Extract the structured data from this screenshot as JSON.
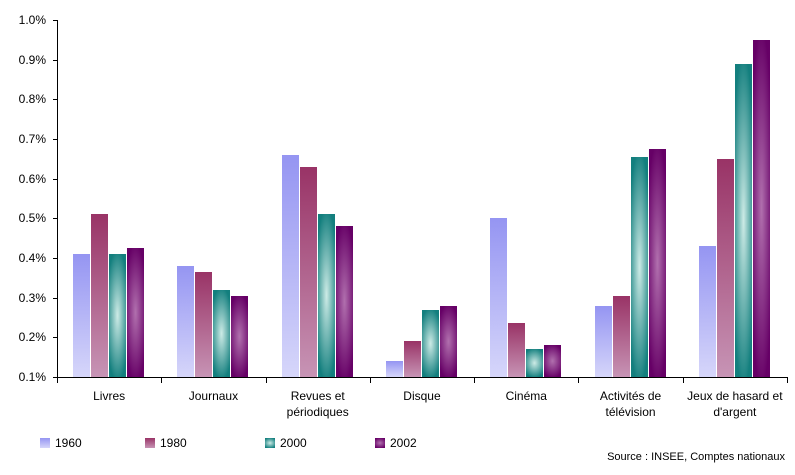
{
  "chart_data": {
    "type": "bar",
    "title": "",
    "xlabel": "",
    "ylabel": "",
    "units": "%",
    "ylim": [
      0.1,
      1.0
    ],
    "ytick_step": 0.1,
    "ytick_labels_top_to_bottom": [
      "1.0%",
      "0.9%",
      "0.8%",
      "0.7%",
      "0.6%",
      "0.5%",
      "0.4%",
      "0.3%",
      "0.2%",
      "0.1%"
    ],
    "grid": false,
    "legend_position": "bottom-left",
    "categories": [
      "Livres",
      "Journaux",
      "Revues et périodiques",
      "Disque",
      "Cinéma",
      "Activités de télévision",
      "Jeux de hasard et d'argent"
    ],
    "series": [
      {
        "name": "1960",
        "values": [
          0.41,
          0.38,
          0.66,
          0.14,
          0.5,
          0.28,
          0.43
        ],
        "fill": {
          "style": "vertical",
          "from": "#9595f2",
          "to": "#d6d6fa"
        }
      },
      {
        "name": "1980",
        "values": [
          0.51,
          0.365,
          0.63,
          0.19,
          0.235,
          0.305,
          0.65
        ],
        "fill": {
          "style": "vertical",
          "from": "#993366",
          "to": "#c794b5"
        }
      },
      {
        "name": "2000",
        "values": [
          0.41,
          0.32,
          0.51,
          0.27,
          0.17,
          0.655,
          0.89
        ],
        "fill": {
          "style": "center",
          "center": "#cdebe6",
          "edge": "#137f7e"
        }
      },
      {
        "name": "2002",
        "values": [
          0.425,
          0.305,
          0.48,
          0.28,
          0.18,
          0.675,
          0.95
        ],
        "fill": {
          "style": "center",
          "center": "#b170ae",
          "edge": "#660066"
        }
      }
    ]
  },
  "source_note": "Source : INSEE, Comptes nationaux"
}
